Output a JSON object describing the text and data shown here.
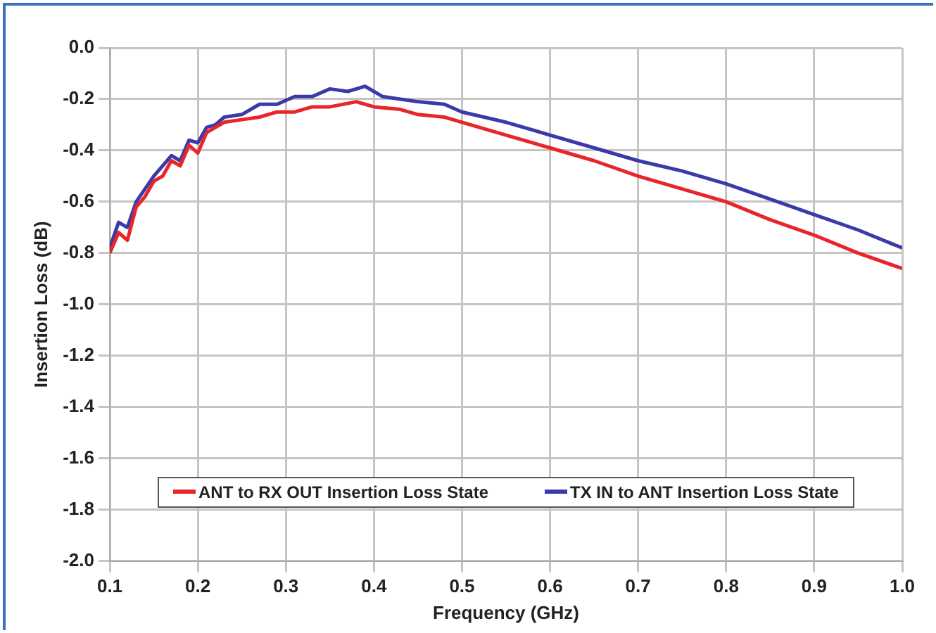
{
  "chart_data": {
    "type": "line",
    "xlabel": "Frequency (GHz)",
    "ylabel": "Insertion Loss (dB)",
    "xlim": [
      0.1,
      1.0
    ],
    "xticks": [
      0.1,
      0.2,
      0.3,
      0.4,
      0.5,
      0.6,
      0.7,
      0.8,
      0.9,
      {
        "value": 1.0,
        "label": "1.0"
      }
    ],
    "ylim": [
      -2.0,
      0.0
    ],
    "yticks": [
      {
        "value": -2.0,
        "label": "-2.0"
      },
      -1.8,
      -1.6,
      -1.4,
      -1.2,
      {
        "value": -1.0,
        "label": "-1.0"
      },
      -0.8,
      -0.6,
      -0.4,
      -0.2,
      {
        "value": 0.0,
        "label": "0.0"
      }
    ],
    "grid": true,
    "legend": "bottom",
    "marker": "none",
    "line_style": "solid",
    "series": [
      {
        "name": "ANT to RX OUT Insertion Loss State",
        "color": "#e8262a",
        "x": [
          0.1,
          0.11,
          0.12,
          0.13,
          0.14,
          0.15,
          0.16,
          0.17,
          0.18,
          0.19,
          0.2,
          0.21,
          0.22,
          0.23,
          0.25,
          0.27,
          0.29,
          0.31,
          0.33,
          0.35,
          0.38,
          0.4,
          0.43,
          0.45,
          0.48,
          0.5,
          0.55,
          0.6,
          0.65,
          0.7,
          0.75,
          0.8,
          0.85,
          0.9,
          0.95,
          1.0
        ],
        "values": [
          -0.8,
          -0.72,
          -0.75,
          -0.62,
          -0.58,
          -0.52,
          -0.5,
          -0.44,
          -0.46,
          -0.38,
          -0.41,
          -0.33,
          -0.31,
          -0.29,
          -0.28,
          -0.27,
          -0.25,
          -0.25,
          -0.23,
          -0.23,
          -0.21,
          -0.23,
          -0.24,
          -0.26,
          -0.27,
          -0.29,
          -0.34,
          -0.39,
          -0.44,
          -0.5,
          -0.55,
          -0.6,
          -0.67,
          -0.73,
          -0.8,
          -0.86
        ]
      },
      {
        "name": "TX IN to ANT Insertion Loss State",
        "color": "#3a3aa8",
        "x": [
          0.1,
          0.11,
          0.12,
          0.13,
          0.14,
          0.15,
          0.16,
          0.17,
          0.18,
          0.19,
          0.2,
          0.21,
          0.22,
          0.23,
          0.25,
          0.27,
          0.29,
          0.31,
          0.33,
          0.35,
          0.37,
          0.39,
          0.41,
          0.43,
          0.45,
          0.48,
          0.5,
          0.55,
          0.6,
          0.65,
          0.7,
          0.75,
          0.8,
          0.85,
          0.9,
          0.95,
          1.0
        ],
        "values": [
          -0.78,
          -0.68,
          -0.7,
          -0.6,
          -0.55,
          -0.5,
          -0.46,
          -0.42,
          -0.44,
          -0.36,
          -0.37,
          -0.31,
          -0.3,
          -0.27,
          -0.26,
          -0.22,
          -0.22,
          -0.19,
          -0.19,
          -0.16,
          -0.17,
          -0.15,
          -0.19,
          -0.2,
          -0.21,
          -0.22,
          -0.25,
          -0.29,
          -0.34,
          -0.39,
          -0.44,
          -0.48,
          -0.53,
          -0.59,
          -0.65,
          -0.71,
          -0.78
        ]
      }
    ]
  }
}
